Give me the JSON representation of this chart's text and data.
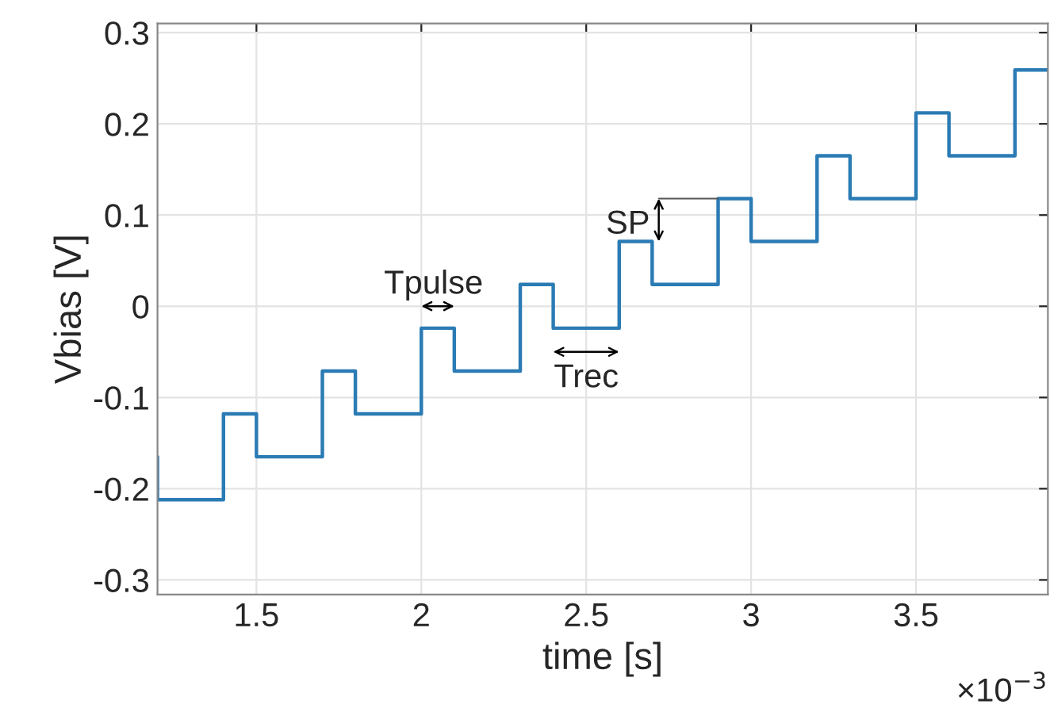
{
  "chart_data": {
    "type": "step",
    "xlabel": "time [s]",
    "ylabel": "Vbias [V]",
    "x": [
      1.2,
      1.2,
      1.4,
      1.5,
      1.7,
      1.8,
      2.0,
      2.1,
      2.3,
      2.4,
      2.6,
      2.7,
      2.9,
      3.0,
      3.2,
      3.3,
      3.5,
      3.6,
      3.8,
      3.9
    ],
    "series": [
      {
        "color": "#2b7bb4",
        "values": [
          -0.165,
          -0.212,
          -0.118,
          -0.165,
          -0.071,
          -0.118,
          -0.024,
          -0.071,
          0.024,
          -0.024,
          0.071,
          0.024,
          0.118,
          0.071,
          0.165,
          0.118,
          0.212,
          0.165,
          0.259,
          0.259
        ]
      }
    ],
    "xlim": [
      1.2,
      3.9
    ],
    "ylim": [
      -0.316,
      0.31
    ],
    "xticks": [
      1.5,
      2,
      2.5,
      3,
      3.5
    ],
    "yticks": [
      -0.3,
      -0.2,
      -0.1,
      0,
      0.1,
      0.2,
      0.3
    ],
    "grid": true,
    "line_style": "solid",
    "marker": "none",
    "annotations": [
      "Tpulse",
      "Trec",
      {
        "text": "SP",
        "x": 2.9,
        "y": 0.118
      },
      "×10$^{−3}$"
    ]
  }
}
